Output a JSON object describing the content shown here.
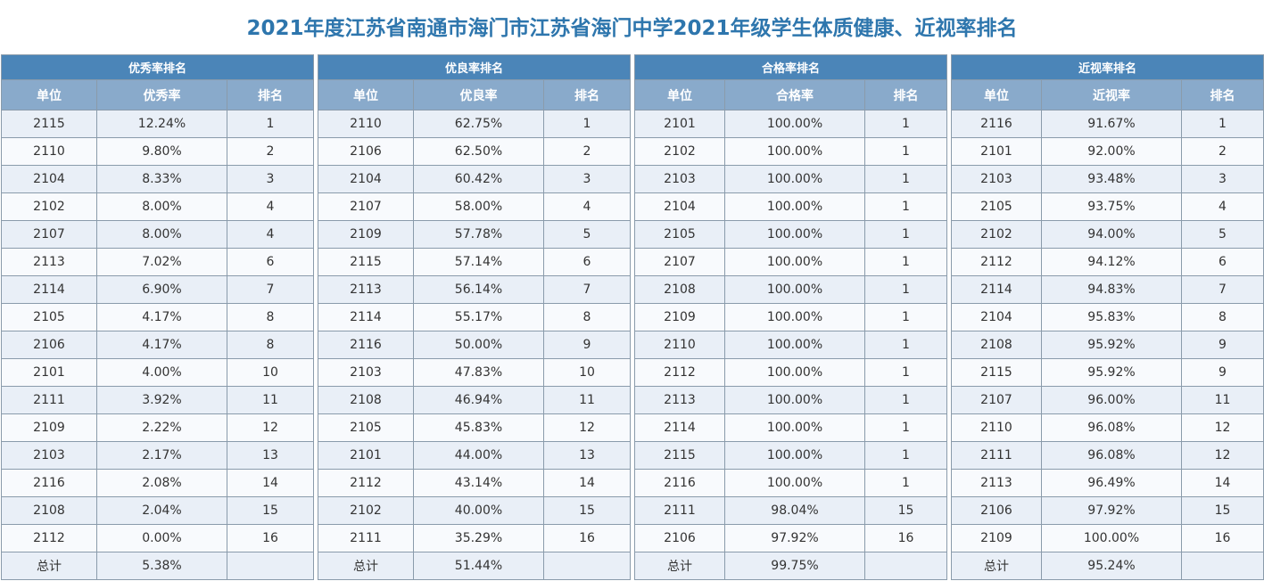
{
  "title": "2021年度江苏省南通市海门市江苏省海门中学2021年级学生体质健康、近视率排名",
  "columns": {
    "unit": "单位",
    "rank": "排名"
  },
  "total_label": "总计",
  "colors": {
    "title": "#2e76ad",
    "group_header": "#4b85b8",
    "column_header": "#89aacb",
    "row_odd": "#e9eff7",
    "row_even": "#f8fafd"
  },
  "tables": [
    {
      "group": "优秀率排名",
      "metric": "优秀率",
      "rows": [
        [
          "2115",
          "12.24%",
          "1"
        ],
        [
          "2110",
          "9.80%",
          "2"
        ],
        [
          "2104",
          "8.33%",
          "3"
        ],
        [
          "2102",
          "8.00%",
          "4"
        ],
        [
          "2107",
          "8.00%",
          "4"
        ],
        [
          "2113",
          "7.02%",
          "6"
        ],
        [
          "2114",
          "6.90%",
          "7"
        ],
        [
          "2105",
          "4.17%",
          "8"
        ],
        [
          "2106",
          "4.17%",
          "8"
        ],
        [
          "2101",
          "4.00%",
          "10"
        ],
        [
          "2111",
          "3.92%",
          "11"
        ],
        [
          "2109",
          "2.22%",
          "12"
        ],
        [
          "2103",
          "2.17%",
          "13"
        ],
        [
          "2116",
          "2.08%",
          "14"
        ],
        [
          "2108",
          "2.04%",
          "15"
        ],
        [
          "2112",
          "0.00%",
          "16"
        ]
      ],
      "total": "5.38%"
    },
    {
      "group": "优良率排名",
      "metric": "优良率",
      "rows": [
        [
          "2110",
          "62.75%",
          "1"
        ],
        [
          "2106",
          "62.50%",
          "2"
        ],
        [
          "2104",
          "60.42%",
          "3"
        ],
        [
          "2107",
          "58.00%",
          "4"
        ],
        [
          "2109",
          "57.78%",
          "5"
        ],
        [
          "2115",
          "57.14%",
          "6"
        ],
        [
          "2113",
          "56.14%",
          "7"
        ],
        [
          "2114",
          "55.17%",
          "8"
        ],
        [
          "2116",
          "50.00%",
          "9"
        ],
        [
          "2103",
          "47.83%",
          "10"
        ],
        [
          "2108",
          "46.94%",
          "11"
        ],
        [
          "2105",
          "45.83%",
          "12"
        ],
        [
          "2101",
          "44.00%",
          "13"
        ],
        [
          "2112",
          "43.14%",
          "14"
        ],
        [
          "2102",
          "40.00%",
          "15"
        ],
        [
          "2111",
          "35.29%",
          "16"
        ]
      ],
      "total": "51.44%"
    },
    {
      "group": "合格率排名",
      "metric": "合格率",
      "rows": [
        [
          "2101",
          "100.00%",
          "1"
        ],
        [
          "2102",
          "100.00%",
          "1"
        ],
        [
          "2103",
          "100.00%",
          "1"
        ],
        [
          "2104",
          "100.00%",
          "1"
        ],
        [
          "2105",
          "100.00%",
          "1"
        ],
        [
          "2107",
          "100.00%",
          "1"
        ],
        [
          "2108",
          "100.00%",
          "1"
        ],
        [
          "2109",
          "100.00%",
          "1"
        ],
        [
          "2110",
          "100.00%",
          "1"
        ],
        [
          "2112",
          "100.00%",
          "1"
        ],
        [
          "2113",
          "100.00%",
          "1"
        ],
        [
          "2114",
          "100.00%",
          "1"
        ],
        [
          "2115",
          "100.00%",
          "1"
        ],
        [
          "2116",
          "100.00%",
          "1"
        ],
        [
          "2111",
          "98.04%",
          "15"
        ],
        [
          "2106",
          "97.92%",
          "16"
        ]
      ],
      "total": "99.75%"
    },
    {
      "group": "近视率排名",
      "metric": "近视率",
      "rows": [
        [
          "2116",
          "91.67%",
          "1"
        ],
        [
          "2101",
          "92.00%",
          "2"
        ],
        [
          "2103",
          "93.48%",
          "3"
        ],
        [
          "2105",
          "93.75%",
          "4"
        ],
        [
          "2102",
          "94.00%",
          "5"
        ],
        [
          "2112",
          "94.12%",
          "6"
        ],
        [
          "2114",
          "94.83%",
          "7"
        ],
        [
          "2104",
          "95.83%",
          "8"
        ],
        [
          "2108",
          "95.92%",
          "9"
        ],
        [
          "2115",
          "95.92%",
          "9"
        ],
        [
          "2107",
          "96.00%",
          "11"
        ],
        [
          "2110",
          "96.08%",
          "12"
        ],
        [
          "2111",
          "96.08%",
          "12"
        ],
        [
          "2113",
          "96.49%",
          "14"
        ],
        [
          "2106",
          "97.92%",
          "15"
        ],
        [
          "2109",
          "100.00%",
          "16"
        ]
      ],
      "total": "95.24%"
    }
  ]
}
